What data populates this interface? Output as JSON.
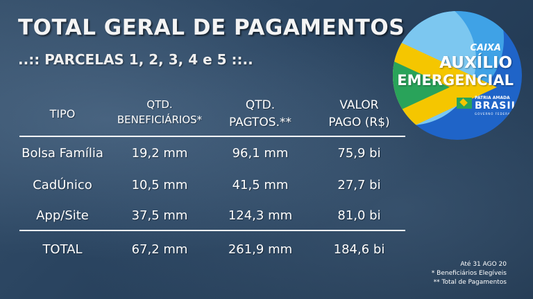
{
  "title": "TOTAL GERAL DE PAGAMENTOS",
  "subtitle": "..:: PARCELAS 1, 2, 3, 4 e 5 ::..",
  "logo": {
    "brand": "CAIXA",
    "line1": "AUXÍLIO",
    "line2": "EMERGENCIAL",
    "gov_tagline": "PÁTRIA AMADA",
    "gov_name": "BRASIL",
    "gov_sub": "GOVERNO FEDERAL"
  },
  "table": {
    "headers": [
      {
        "l1": "TIPO",
        "l2": ""
      },
      {
        "l1": "QTD.",
        "l2": "BENEFICIÁRIOS*"
      },
      {
        "l1": "QTD.",
        "l2": "PAGTOS.**"
      },
      {
        "l1": "VALOR",
        "l2": "PAGO (R$)"
      }
    ],
    "rows": [
      [
        "Bolsa Família",
        "19,2 mm",
        "96,1 mm",
        "75,9 bi"
      ],
      [
        "CadÚnico",
        "10,5 mm",
        "41,5 mm",
        "27,7 bi"
      ],
      [
        "App/Site",
        "37,5 mm",
        "124,3 mm",
        "81,0 bi"
      ]
    ],
    "total": [
      "TOTAL",
      "67,2 mm",
      "261,9 mm",
      "184,6 bi"
    ]
  },
  "notes": {
    "date": "Até 31 AGO 20",
    "n1": "* Beneficiários Elegíveis",
    "n2": "** Total de Pagamentos"
  }
}
